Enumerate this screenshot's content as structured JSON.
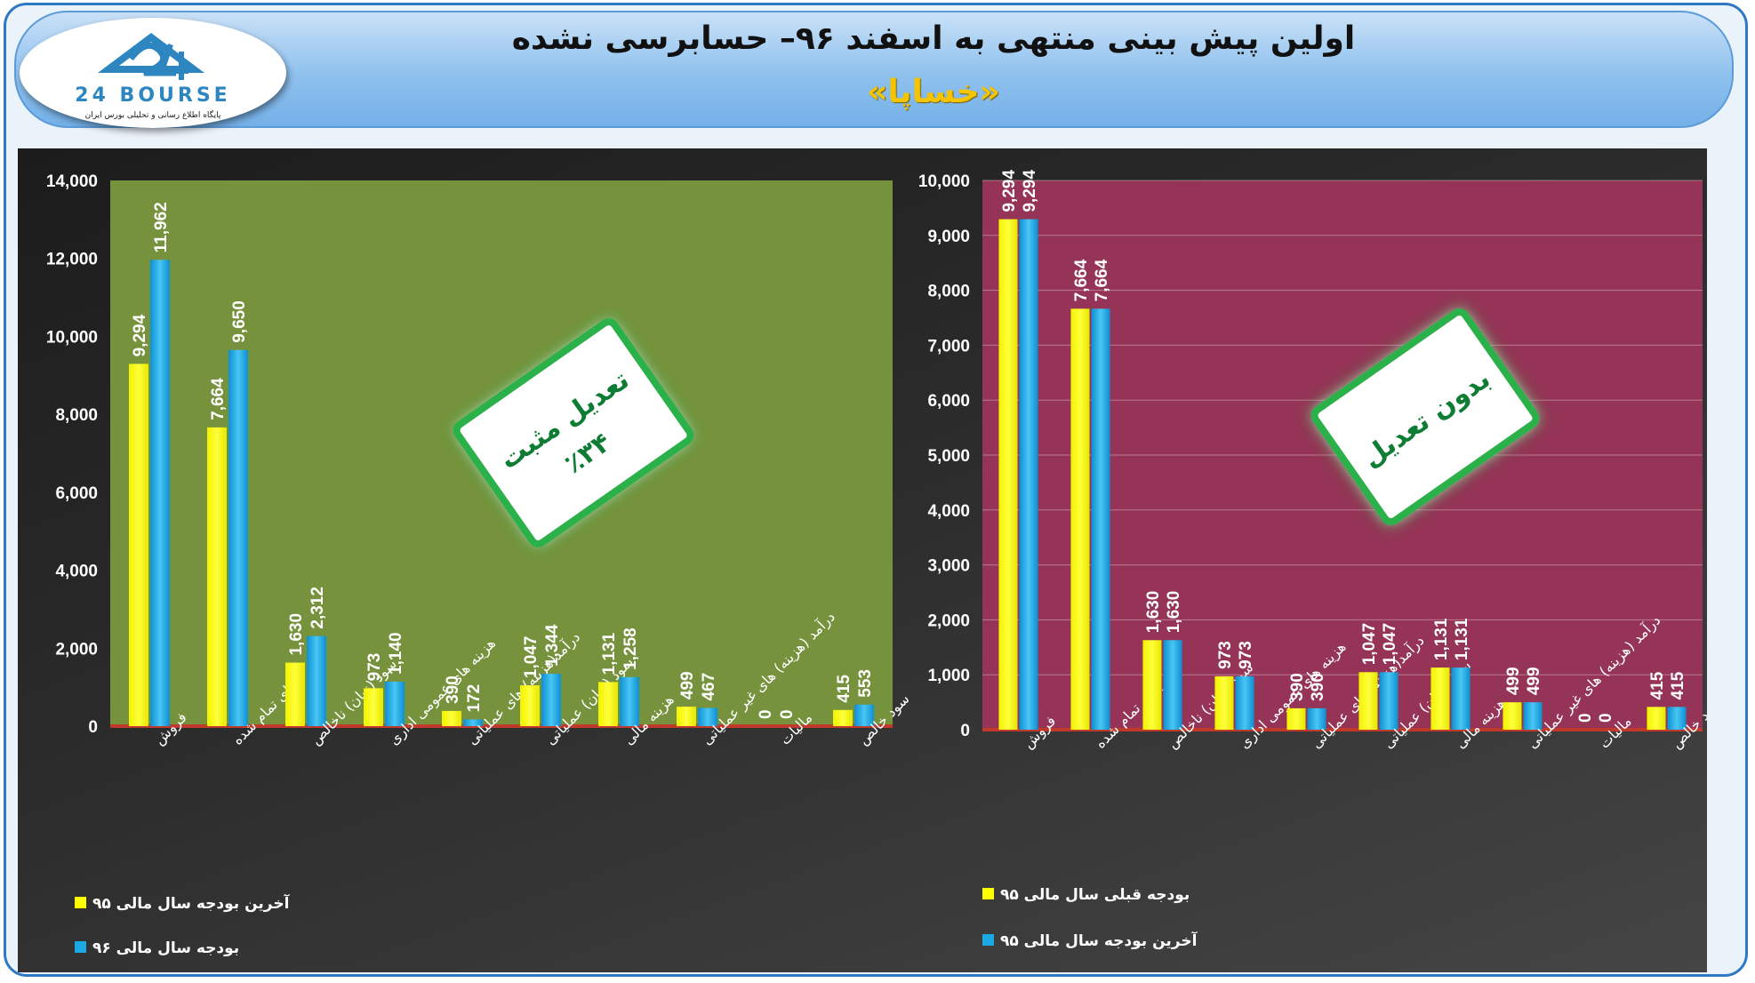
{
  "header": {
    "title": "اولین پیش بینی منتهی به اسفند ۹۶– حسابرسی نشده",
    "subtitle": "«خساپا»",
    "logo_text": "24 BOURSE",
    "logo_tagline": "پایگاه اطلاع رسانی و تحلیلی بورس ایران"
  },
  "colors": {
    "yellow_series": "#ffff00",
    "blue_series": "#1aa9e4",
    "left_plot_bg": "#76923c",
    "right_plot_bg": "#953456",
    "badge_green": "#0e7d33"
  },
  "chart_data": [
    {
      "type": "bar",
      "title": "",
      "categories": [
        "فروش",
        "بهای تمام شده",
        "سود (زیان) ناخالص",
        "هزینه های عمومی اداری",
        "درآمد(هزینه) های عملیاتی",
        "سود (زیان) عملیاتی",
        "هزینه مالی",
        "درآمد (هزینه) های غیر عملیاتی",
        "مالیات",
        "سود خالص"
      ],
      "series": [
        {
          "name": "آخرین بودجه سال مالی ۹۵",
          "values": [
            9294,
            7664,
            1630,
            973,
            390,
            1047,
            1131,
            499,
            0,
            415
          ]
        },
        {
          "name": "بودجه سال مالی ۹۶",
          "values": [
            11962,
            9650,
            2312,
            1140,
            172,
            1344,
            1258,
            467,
            0,
            553
          ]
        }
      ],
      "data_labels": [
        [
          "9,294",
          "7,664",
          "1,630",
          "973",
          "390",
          "1,047",
          "1,131",
          "499",
          "0",
          "415"
        ],
        [
          "11,962",
          "9,650",
          "2,312",
          "1,140",
          "172",
          "1,344",
          "1,258",
          "467",
          "0",
          "553"
        ]
      ],
      "ylim": [
        0,
        14000
      ],
      "yticks": [
        0,
        2000,
        4000,
        6000,
        8000,
        10000,
        12000,
        14000
      ],
      "ytick_labels": [
        "0",
        "2,000",
        "4,000",
        "6,000",
        "8,000",
        "10,000",
        "12,000",
        "14,000"
      ],
      "grid": false,
      "legend_position": "bottom-left",
      "annotation": {
        "line1": "تعدیل مثبت",
        "line2": "٪۳۴"
      }
    },
    {
      "type": "bar",
      "title": "",
      "categories": [
        "فروش",
        "بهای تمام شده",
        "سود (زیان) ناخالص",
        "هزینه های عمومی اداری",
        "درآمد(هزینه) های عملیاتی",
        "سود (زیان) عملیاتی",
        "هزینه مالی",
        "درآمد (هزینه) های غیر عملیاتی",
        "مالیات",
        "سود خالص"
      ],
      "series": [
        {
          "name": "بودجه قبلی سال مالی ۹۵",
          "values": [
            9294,
            7664,
            1630,
            973,
            390,
            1047,
            1131,
            499,
            0,
            415
          ]
        },
        {
          "name": "آخرین بودجه سال مالی ۹۵",
          "values": [
            9294,
            7664,
            1630,
            973,
            390,
            1047,
            1131,
            499,
            0,
            415
          ]
        }
      ],
      "data_labels": [
        [
          "9,294",
          "7,664",
          "1,630",
          "973",
          "390",
          "1,047",
          "1,131",
          "499",
          "0",
          "415"
        ],
        [
          "9,294",
          "7,664",
          "1,630",
          "973",
          "390",
          "1,047",
          "1,131",
          "499",
          "0",
          "415"
        ]
      ],
      "ylim": [
        0,
        10000
      ],
      "yticks": [
        0,
        1000,
        2000,
        3000,
        4000,
        5000,
        6000,
        7000,
        8000,
        9000,
        10000
      ],
      "ytick_labels": [
        "0",
        "1,000",
        "2,000",
        "3,000",
        "4,000",
        "5,000",
        "6,000",
        "7,000",
        "8,000",
        "9,000",
        "10,000"
      ],
      "grid": true,
      "legend_position": "bottom-left",
      "annotation": {
        "line1": "بدون تعدیل",
        "line2": ""
      }
    }
  ]
}
